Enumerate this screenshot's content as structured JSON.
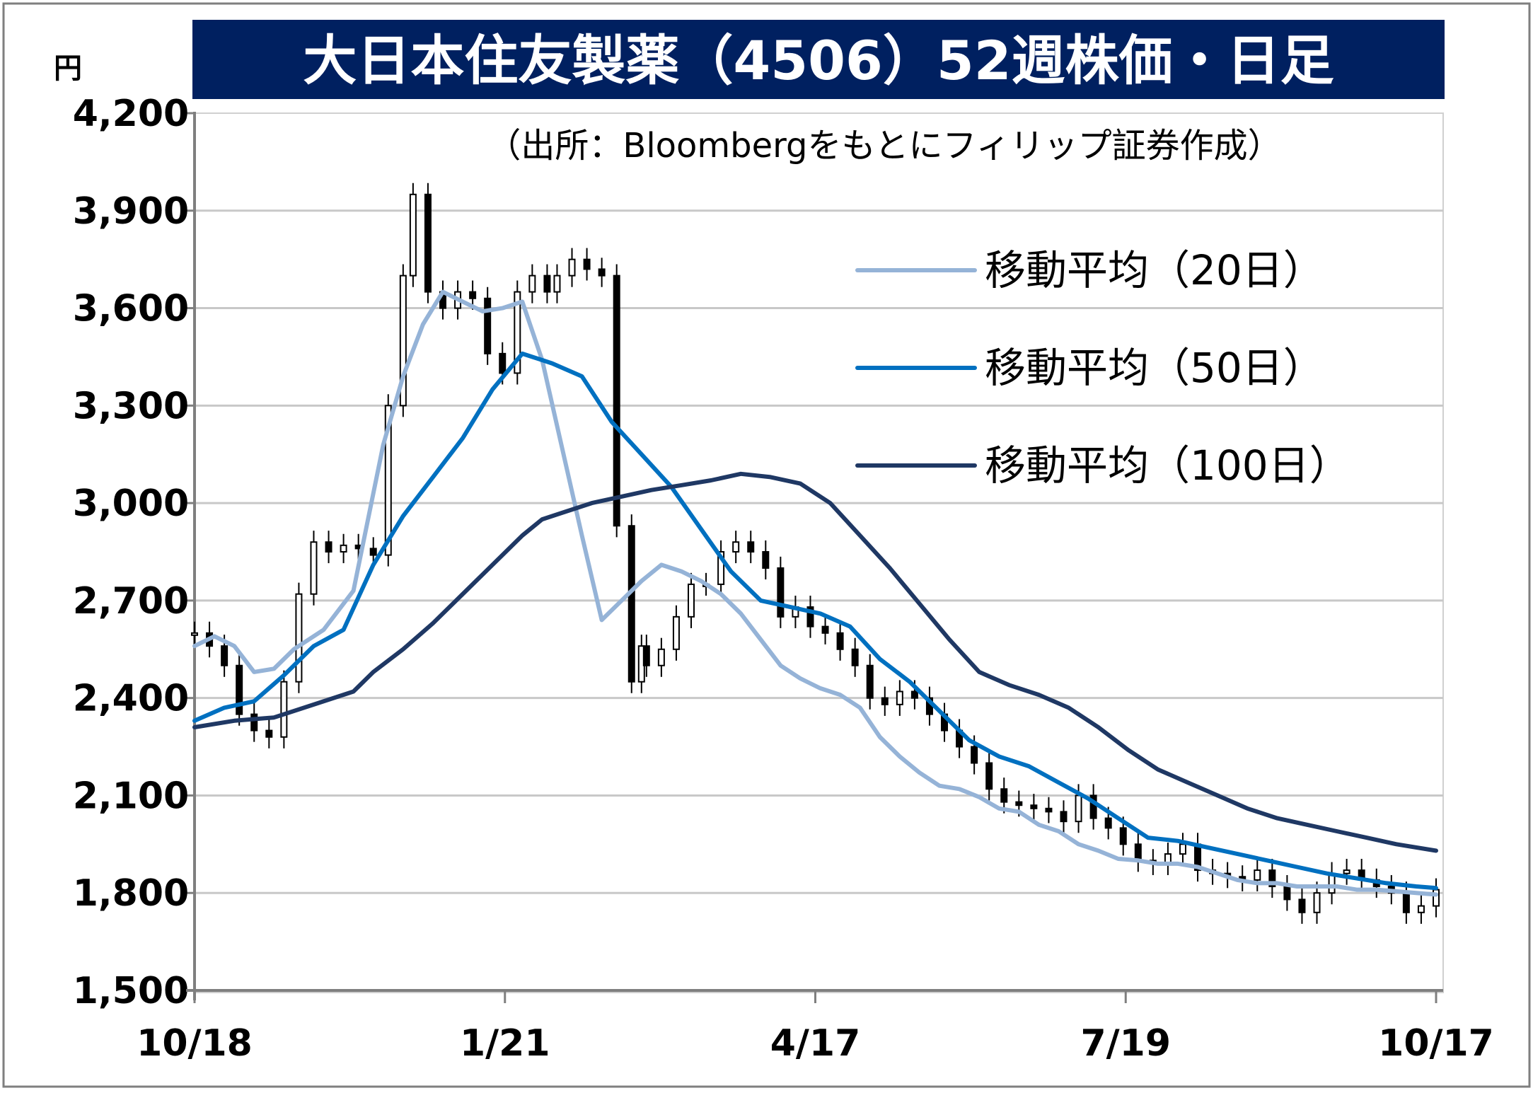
{
  "chart_data": {
    "type": "line",
    "title": "大日本住友製薬（4506）52週株価・日足",
    "subtitle": "（出所：Bloombergをもとにフィリップ証券作成）",
    "ylabel": "円",
    "ylim": [
      1500,
      4200
    ],
    "yticks": [
      "4,200",
      "3,900",
      "3,600",
      "3,300",
      "3,000",
      "2,700",
      "2,400",
      "2,100",
      "1,800",
      "1,500"
    ],
    "xticks": [
      "10/18",
      "1/21",
      "4/17",
      "7/19",
      "10/17"
    ],
    "grid": true,
    "legend_position": "top-right",
    "candles_t": [
      0,
      3,
      6,
      9,
      12,
      15,
      18,
      21,
      24,
      27,
      30,
      33,
      36,
      39,
      42,
      44,
      47,
      50,
      53,
      56,
      59,
      62,
      65,
      68,
      71,
      73,
      76,
      79,
      82,
      85,
      88,
      90,
      91,
      94,
      97,
      100,
      103,
      106,
      109,
      112,
      115,
      118,
      121,
      124,
      127,
      130,
      133,
      136,
      139,
      142,
      145,
      148,
      151,
      154,
      157,
      160,
      163,
      166,
      169,
      172,
      175,
      178,
      181,
      184,
      187,
      190,
      193,
      196,
      199,
      202,
      205,
      208,
      211,
      214,
      217,
      220,
      223,
      226,
      229,
      232,
      235,
      238,
      241,
      244,
      247,
      250
    ],
    "candles_close": [
      2600,
      2560,
      2500,
      2350,
      2300,
      2280,
      2450,
      2720,
      2880,
      2850,
      2870,
      2860,
      2840,
      3300,
      3700,
      3950,
      3650,
      3600,
      3650,
      3630,
      3460,
      3400,
      3650,
      3700,
      3650,
      3700,
      3750,
      3720,
      3700,
      2930,
      2450,
      2560,
      2500,
      2550,
      2650,
      2750,
      2750,
      2850,
      2880,
      2850,
      2800,
      2650,
      2680,
      2620,
      2600,
      2550,
      2500,
      2400,
      2380,
      2420,
      2400,
      2350,
      2300,
      2250,
      2200,
      2120,
      2080,
      2070,
      2060,
      2050,
      2020,
      2100,
      2030,
      2000,
      1950,
      1900,
      1890,
      1920,
      1950,
      1870,
      1860,
      1850,
      1840,
      1870,
      1820,
      1780,
      1740,
      1800,
      1860,
      1870,
      1840,
      1820,
      1800,
      1740,
      1760,
      1810
    ],
    "series": [
      {
        "name": "移動平均（20日）",
        "color": "#95b3d7",
        "t": [
          0,
          4,
          8,
          12,
          16,
          20,
          26,
          32,
          38,
          42,
          46,
          50,
          54,
          58,
          62,
          66,
          70,
          74,
          78,
          82,
          86,
          90,
          94,
          98,
          102,
          106,
          110,
          114,
          118,
          122,
          126,
          130,
          134,
          138,
          142,
          146,
          150,
          154,
          158,
          162,
          166,
          170,
          174,
          178,
          182,
          186,
          190,
          194,
          198,
          202,
          206,
          210,
          214,
          218,
          222,
          226,
          230,
          234,
          238,
          242,
          246,
          250
        ],
        "values": [
          2560,
          2590,
          2560,
          2480,
          2490,
          2550,
          2610,
          2730,
          3180,
          3390,
          3550,
          3650,
          3620,
          3590,
          3600,
          3620,
          3440,
          3170,
          2900,
          2640,
          2700,
          2760,
          2810,
          2790,
          2760,
          2720,
          2660,
          2580,
          2500,
          2460,
          2430,
          2410,
          2370,
          2280,
          2220,
          2170,
          2130,
          2120,
          2095,
          2060,
          2050,
          2010,
          1990,
          1950,
          1930,
          1905,
          1900,
          1890,
          1890,
          1880,
          1860,
          1840,
          1830,
          1830,
          1820,
          1820,
          1820,
          1810,
          1810,
          1805,
          1800,
          1795
        ]
      },
      {
        "name": "移動平均（50日）",
        "color": "#0070c0",
        "t": [
          0,
          6,
          12,
          18,
          24,
          30,
          36,
          42,
          48,
          54,
          60,
          66,
          70,
          72,
          78,
          84,
          90,
          96,
          102,
          108,
          114,
          120,
          126,
          132,
          138,
          144,
          150,
          156,
          162,
          168,
          174,
          180,
          186,
          192,
          198,
          204,
          210,
          216,
          222,
          228,
          234,
          240,
          246,
          250
        ],
        "values": [
          2330,
          2370,
          2390,
          2470,
          2560,
          2610,
          2810,
          2960,
          3080,
          3200,
          3350,
          3460,
          3440,
          3430,
          3390,
          3250,
          3150,
          3050,
          2920,
          2790,
          2700,
          2680,
          2660,
          2620,
          2520,
          2450,
          2360,
          2270,
          2220,
          2190,
          2140,
          2090,
          2030,
          1970,
          1960,
          1940,
          1920,
          1900,
          1880,
          1860,
          1845,
          1830,
          1820,
          1815
        ]
      },
      {
        "name": "移動平均（100日）",
        "color": "#1f3864",
        "t": [
          0,
          8,
          16,
          24,
          32,
          36,
          42,
          48,
          54,
          60,
          66,
          70,
          74,
          80,
          86,
          92,
          98,
          104,
          110,
          116,
          122,
          128,
          134,
          140,
          146,
          152,
          158,
          164,
          170,
          176,
          182,
          188,
          194,
          200,
          206,
          212,
          218,
          224,
          230,
          236,
          242,
          250
        ],
        "values": [
          2310,
          2330,
          2340,
          2380,
          2420,
          2480,
          2550,
          2630,
          2720,
          2810,
          2900,
          2950,
          2970,
          3000,
          3020,
          3040,
          3055,
          3070,
          3090,
          3080,
          3060,
          3000,
          2900,
          2800,
          2690,
          2580,
          2480,
          2440,
          2410,
          2370,
          2310,
          2240,
          2180,
          2140,
          2100,
          2060,
          2030,
          2010,
          1990,
          1970,
          1950,
          1930
        ]
      }
    ]
  }
}
